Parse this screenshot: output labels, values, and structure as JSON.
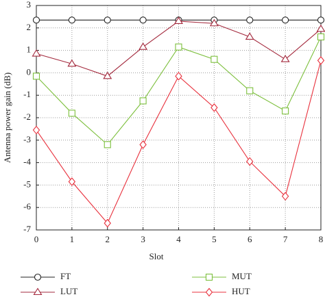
{
  "chart_data": {
    "type": "line",
    "xlabel": "Slot",
    "ylabel": "Antenna power gain (dB)",
    "x": [
      0,
      1,
      2,
      3,
      4,
      5,
      6,
      7,
      8
    ],
    "xlim": [
      0,
      8
    ],
    "xticks": [
      0,
      1,
      2,
      3,
      4,
      5,
      6,
      7,
      8
    ],
    "ylim": [
      -7,
      3
    ],
    "yticks": [
      -7,
      -6,
      -5,
      -4,
      -3,
      -2,
      -1,
      0,
      1,
      2,
      3
    ],
    "grid": true,
    "legend": "bottom",
    "series": [
      {
        "name": "FT",
        "color": "#222222",
        "marker": "circle",
        "values": [
          2.35,
          2.35,
          2.35,
          2.35,
          2.35,
          2.35,
          2.35,
          2.35,
          2.35
        ]
      },
      {
        "name": "LUT",
        "color": "#a3283c",
        "marker": "triangle",
        "values": [
          0.85,
          0.4,
          -0.15,
          1.15,
          2.3,
          2.2,
          1.6,
          0.6,
          1.95
        ]
      },
      {
        "name": "MUT",
        "color": "#7cbf3c",
        "marker": "square",
        "values": [
          -0.15,
          -1.8,
          -3.2,
          -1.25,
          1.15,
          0.6,
          -0.8,
          -1.7,
          1.6
        ]
      },
      {
        "name": "HUT",
        "color": "#e8303c",
        "marker": "diamond",
        "values": [
          -2.55,
          -4.85,
          -6.7,
          -3.2,
          -0.15,
          -1.55,
          -3.95,
          -5.5,
          0.55
        ]
      }
    ]
  }
}
